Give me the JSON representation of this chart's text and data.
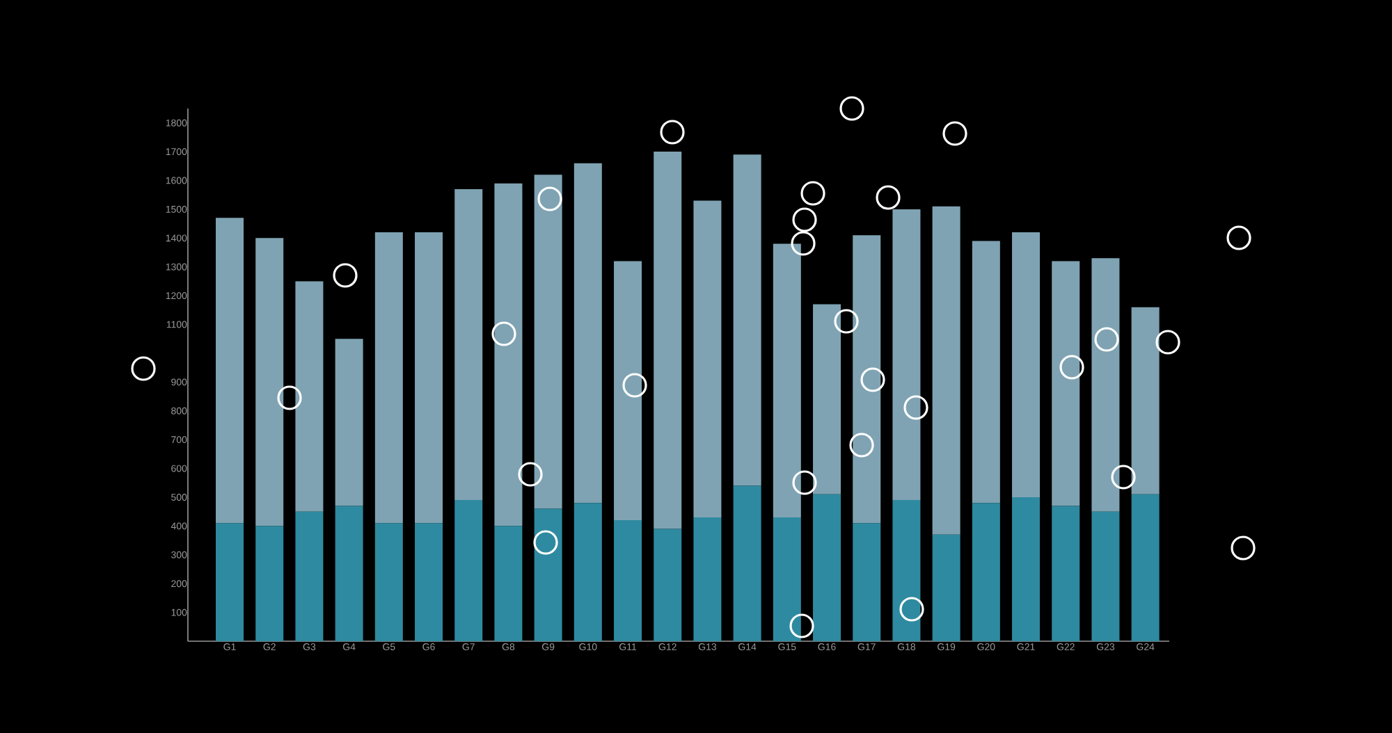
{
  "chart_data": {
    "type": "bar",
    "stacked": true,
    "categories": [
      "G1",
      "G2",
      "G3",
      "G4",
      "G5",
      "G6",
      "G7",
      "G8",
      "G9",
      "G10",
      "G11",
      "G12",
      "G13",
      "G14",
      "G15",
      "G16",
      "G17",
      "G18",
      "G19",
      "G20",
      "G21",
      "G22",
      "G23",
      "G24"
    ],
    "series": [
      {
        "color": "#2e8aa0",
        "values": [
          410,
          400,
          450,
          470,
          410,
          410,
          490,
          400,
          460,
          480,
          420,
          390,
          430,
          540,
          430,
          510,
          410,
          490,
          370,
          480,
          500,
          470,
          450,
          510
        ]
      },
      {
        "color": "#7fa3b3",
        "values": [
          1060,
          1000,
          800,
          580,
          1010,
          1010,
          1080,
          1190,
          1160,
          1180,
          900,
          1310,
          1100,
          1150,
          950,
          660,
          1000,
          1010,
          1140,
          910,
          920,
          850,
          880,
          650
        ]
      }
    ],
    "ylim": [
      0,
      1850
    ],
    "yticks": [
      100,
      200,
      300,
      400,
      500,
      600,
      700,
      800,
      900,
      1100,
      1200,
      1300,
      1400,
      1500,
      1600,
      1700,
      1800
    ]
  }
}
